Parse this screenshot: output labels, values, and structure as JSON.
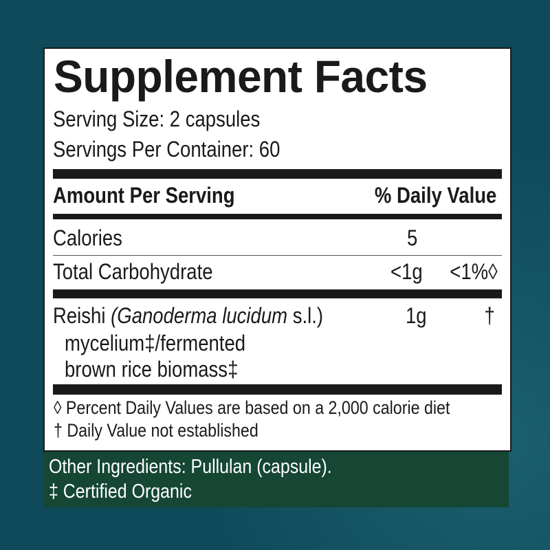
{
  "title": "Supplement Facts",
  "serving_size": "Serving Size: 2 capsules",
  "servings_per_container": "Servings Per Container: 60",
  "header": {
    "amount": "Amount Per Serving",
    "daily_value": "% Daily Value"
  },
  "rows": [
    {
      "name": "Calories",
      "amount": "5",
      "dv": ""
    },
    {
      "name": "Total Carbohydrate",
      "amount": "<1g",
      "dv": "<1%◊"
    },
    {
      "name": "Reishi",
      "latin": "(Ganoderma lucidum",
      "latin_suffix": "s.l.)",
      "line2": "mycelium‡/fermented",
      "line3": "brown rice biomass‡",
      "amount": "1g",
      "dv": "†"
    }
  ],
  "footnotes": [
    "◊ Percent Daily Values are based on a 2,000 calorie diet",
    "† Daily Value not established"
  ],
  "other_ingredients": "Other Ingredients: Pullulan (capsule).",
  "organic_note": "‡ Certified Organic",
  "colors": {
    "background": "#0f4a5a",
    "green_band": "#154734",
    "text": "#1a1a1a"
  }
}
